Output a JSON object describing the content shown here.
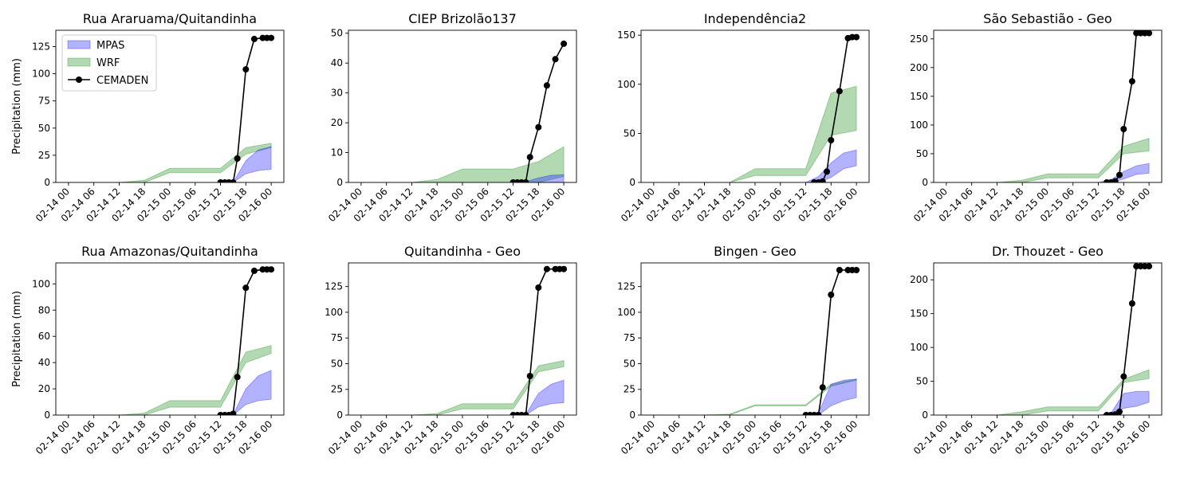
{
  "colors": {
    "mpas": "#0000ff",
    "wrf": "#008000",
    "cemaden": "#000000"
  },
  "legend": {
    "location": "upper-left",
    "panel": 0,
    "entries": [
      "MPAS",
      "WRF",
      "CEMADEN"
    ]
  },
  "y_axis_label": "Precipitation (mm)",
  "x_tick_labels": [
    "02-14 00",
    "02-14 06",
    "02-14 12",
    "02-14 18",
    "02-15 00",
    "02-15 06",
    "02-15 12",
    "02-15 18",
    "02-16 00"
  ],
  "chart_data": [
    {
      "type": "area",
      "title": "Rua Araruama/Quitandinha",
      "ylabel": "Precipitation (mm)",
      "xlim": [
        "2022-02-13T21:00",
        "2022-02-16T03:00"
      ],
      "ylim": [
        0,
        140
      ],
      "yticks": [
        0,
        25,
        50,
        75,
        100,
        125
      ],
      "series": [
        {
          "name": "WRF",
          "kind": "band",
          "x": [
            "2022-02-14T00:00",
            "2022-02-14T12:00",
            "2022-02-14T18:00",
            "2022-02-15T00:00",
            "2022-02-15T12:00",
            "2022-02-15T18:00",
            "2022-02-16T00:00"
          ],
          "lower": [
            0,
            0,
            0,
            9,
            9,
            26,
            32
          ],
          "upper": [
            0,
            0,
            2,
            13,
            13,
            32,
            36
          ]
        },
        {
          "name": "MPAS",
          "kind": "band",
          "x": [
            "2022-02-15T12:00",
            "2022-02-15T15:00",
            "2022-02-15T18:00",
            "2022-02-15T21:00",
            "2022-02-16T00:00"
          ],
          "lower": [
            0,
            0,
            8,
            11,
            12
          ],
          "upper": [
            0,
            0,
            20,
            30,
            33
          ]
        },
        {
          "name": "CEMADEN",
          "kind": "line",
          "x": [
            "2022-02-15T12:00",
            "2022-02-15T13:00",
            "2022-02-15T14:00",
            "2022-02-15T15:00",
            "2022-02-15T16:00",
            "2022-02-15T18:00",
            "2022-02-15T20:00",
            "2022-02-15T22:00",
            "2022-02-15T23:00",
            "2022-02-16T00:00"
          ],
          "y": [
            0,
            0,
            0,
            0,
            22,
            104,
            132,
            133,
            133,
            133
          ]
        }
      ]
    },
    {
      "type": "area",
      "title": "CIEP Brizolão137",
      "ylabel": "",
      "xlim": [
        "2022-02-13T21:00",
        "2022-02-16T03:00"
      ],
      "ylim": [
        0,
        51
      ],
      "yticks": [
        0,
        10,
        20,
        30,
        40,
        50
      ],
      "series": [
        {
          "name": "WRF",
          "kind": "band",
          "x": [
            "2022-02-14T00:00",
            "2022-02-14T12:00",
            "2022-02-14T18:00",
            "2022-02-15T00:00",
            "2022-02-15T12:00",
            "2022-02-15T18:00",
            "2022-02-16T00:00"
          ],
          "lower": [
            0,
            0,
            0,
            0,
            0,
            0,
            2
          ],
          "upper": [
            0,
            0,
            1,
            4.5,
            4.5,
            7,
            12
          ]
        },
        {
          "name": "MPAS",
          "kind": "band",
          "x": [
            "2022-02-15T12:00",
            "2022-02-15T15:00",
            "2022-02-15T18:00",
            "2022-02-15T21:00",
            "2022-02-16T00:00"
          ],
          "lower": [
            0,
            0,
            0,
            0,
            0
          ],
          "upper": [
            0,
            0.3,
            1.5,
            2.4,
            2.6
          ]
        },
        {
          "name": "CEMADEN",
          "kind": "line",
          "x": [
            "2022-02-15T12:00",
            "2022-02-15T13:00",
            "2022-02-15T14:00",
            "2022-02-15T15:00",
            "2022-02-15T16:00",
            "2022-02-15T18:00",
            "2022-02-15T20:00",
            "2022-02-15T22:00",
            "2022-02-16T00:00"
          ],
          "y": [
            0,
            0,
            0,
            0,
            8.5,
            18.5,
            32.5,
            41.3,
            46.5
          ]
        }
      ]
    },
    {
      "type": "area",
      "title": "Independência2",
      "ylabel": "",
      "xlim": [
        "2022-02-13T21:00",
        "2022-02-16T03:00"
      ],
      "ylim": [
        0,
        155
      ],
      "yticks": [
        0,
        50,
        100,
        150
      ],
      "series": [
        {
          "name": "WRF",
          "kind": "band",
          "x": [
            "2022-02-14T00:00",
            "2022-02-14T18:00",
            "2022-02-15T00:00",
            "2022-02-15T12:00",
            "2022-02-15T18:00",
            "2022-02-16T00:00"
          ],
          "lower": [
            0,
            0,
            7,
            7,
            48,
            53
          ],
          "upper": [
            0,
            0,
            14,
            14,
            91,
            98
          ]
        },
        {
          "name": "MPAS",
          "kind": "band",
          "x": [
            "2022-02-15T12:00",
            "2022-02-15T15:00",
            "2022-02-15T18:00",
            "2022-02-15T21:00",
            "2022-02-16T00:00"
          ],
          "lower": [
            0,
            0,
            5,
            14,
            17
          ],
          "upper": [
            0,
            6,
            20,
            30,
            33
          ]
        },
        {
          "name": "CEMADEN",
          "kind": "line",
          "x": [
            "2022-02-15T14:00",
            "2022-02-15T15:00",
            "2022-02-15T16:00",
            "2022-02-15T17:00",
            "2022-02-15T18:00",
            "2022-02-15T20:00",
            "2022-02-15T22:00",
            "2022-02-15T23:00",
            "2022-02-16T00:00"
          ],
          "y": [
            0,
            0,
            1,
            11,
            43,
            93,
            147,
            148,
            148
          ]
        }
      ]
    },
    {
      "type": "area",
      "title": "São Sebastião - Geo",
      "ylabel": "",
      "xlim": [
        "2022-02-13T21:00",
        "2022-02-16T03:00"
      ],
      "ylim": [
        0,
        265
      ],
      "yticks": [
        0,
        50,
        100,
        150,
        200,
        250
      ],
      "series": [
        {
          "name": "WRF",
          "kind": "band",
          "x": [
            "2022-02-14T00:00",
            "2022-02-14T12:00",
            "2022-02-14T18:00",
            "2022-02-15T00:00",
            "2022-02-15T12:00",
            "2022-02-15T18:00",
            "2022-02-16T00:00"
          ],
          "lower": [
            0,
            0,
            0,
            8,
            8,
            50,
            55
          ],
          "upper": [
            0,
            0,
            4,
            15,
            15,
            63,
            77
          ]
        },
        {
          "name": "MPAS",
          "kind": "band",
          "x": [
            "2022-02-15T12:00",
            "2022-02-15T15:00",
            "2022-02-15T18:00",
            "2022-02-15T21:00",
            "2022-02-16T00:00"
          ],
          "lower": [
            0,
            0,
            6,
            14,
            16
          ],
          "upper": [
            0,
            5,
            19,
            29,
            33
          ]
        },
        {
          "name": "CEMADEN",
          "kind": "line",
          "x": [
            "2022-02-15T14:00",
            "2022-02-15T15:00",
            "2022-02-15T16:00",
            "2022-02-15T17:00",
            "2022-02-15T18:00",
            "2022-02-15T20:00",
            "2022-02-15T21:00",
            "2022-02-15T22:00",
            "2022-02-15T23:00",
            "2022-02-16T00:00"
          ],
          "y": [
            0,
            0,
            2,
            13,
            93,
            176,
            260,
            260,
            260,
            260
          ]
        }
      ]
    },
    {
      "type": "area",
      "title": "Rua Amazonas/Quitandinha",
      "ylabel": "Precipitation (mm)",
      "xlim": [
        "2022-02-13T21:00",
        "2022-02-16T03:00"
      ],
      "ylim": [
        0,
        116
      ],
      "yticks": [
        0,
        20,
        40,
        60,
        80,
        100
      ],
      "series": [
        {
          "name": "WRF",
          "kind": "band",
          "x": [
            "2022-02-14T00:00",
            "2022-02-14T12:00",
            "2022-02-14T18:00",
            "2022-02-15T00:00",
            "2022-02-15T12:00",
            "2022-02-15T18:00",
            "2022-02-16T00:00"
          ],
          "lower": [
            0,
            0,
            0,
            6,
            6,
            40,
            47
          ],
          "upper": [
            0,
            0,
            1.5,
            11,
            11,
            48,
            53
          ]
        },
        {
          "name": "MPAS",
          "kind": "band",
          "x": [
            "2022-02-15T12:00",
            "2022-02-15T15:00",
            "2022-02-15T18:00",
            "2022-02-15T21:00",
            "2022-02-16T00:00"
          ],
          "lower": [
            0,
            0,
            8,
            11,
            12
          ],
          "upper": [
            0,
            0.5,
            20,
            30,
            34
          ]
        },
        {
          "name": "CEMADEN",
          "kind": "line",
          "x": [
            "2022-02-15T12:00",
            "2022-02-15T13:00",
            "2022-02-15T14:00",
            "2022-02-15T15:00",
            "2022-02-15T16:00",
            "2022-02-15T18:00",
            "2022-02-15T20:00",
            "2022-02-15T22:00",
            "2022-02-15T23:00",
            "2022-02-16T00:00"
          ],
          "y": [
            0,
            0,
            0,
            1,
            29,
            97,
            110,
            111,
            111,
            111
          ]
        }
      ]
    },
    {
      "type": "area",
      "title": "Quitandinha - Geo",
      "ylabel": "",
      "xlim": [
        "2022-02-13T21:00",
        "2022-02-16T03:00"
      ],
      "ylim": [
        0,
        148
      ],
      "yticks": [
        0,
        25,
        50,
        75,
        100,
        125
      ],
      "series": [
        {
          "name": "WRF",
          "kind": "band",
          "x": [
            "2022-02-14T00:00",
            "2022-02-14T12:00",
            "2022-02-14T18:00",
            "2022-02-15T00:00",
            "2022-02-15T12:00",
            "2022-02-15T18:00",
            "2022-02-16T00:00"
          ],
          "lower": [
            0,
            0,
            0,
            6,
            6,
            42,
            47
          ],
          "upper": [
            0,
            0,
            1.5,
            11,
            11,
            48,
            53
          ]
        },
        {
          "name": "MPAS",
          "kind": "band",
          "x": [
            "2022-02-15T12:00",
            "2022-02-15T15:00",
            "2022-02-15T18:00",
            "2022-02-15T21:00",
            "2022-02-16T00:00"
          ],
          "lower": [
            0,
            0,
            8,
            11,
            12
          ],
          "upper": [
            0,
            0.5,
            21,
            30,
            34
          ]
        },
        {
          "name": "CEMADEN",
          "kind": "line",
          "x": [
            "2022-02-15T12:00",
            "2022-02-15T13:00",
            "2022-02-15T14:00",
            "2022-02-15T15:00",
            "2022-02-15T16:00",
            "2022-02-15T18:00",
            "2022-02-15T20:00",
            "2022-02-15T22:00",
            "2022-02-15T23:00",
            "2022-02-16T00:00"
          ],
          "y": [
            0,
            0,
            0,
            0,
            38,
            124,
            142,
            142,
            142,
            142
          ]
        }
      ]
    },
    {
      "type": "area",
      "title": "Bingen - Geo",
      "ylabel": "",
      "xlim": [
        "2022-02-13T21:00",
        "2022-02-16T03:00"
      ],
      "ylim": [
        0,
        148
      ],
      "yticks": [
        0,
        25,
        50,
        75,
        100,
        125
      ],
      "series": [
        {
          "name": "WRF",
          "kind": "band",
          "x": [
            "2022-02-14T00:00",
            "2022-02-14T12:00",
            "2022-02-14T18:00",
            "2022-02-15T00:00",
            "2022-02-15T12:00",
            "2022-02-15T18:00",
            "2022-02-16T00:00"
          ],
          "lower": [
            0,
            0,
            0,
            9,
            9,
            28,
            34
          ],
          "upper": [
            0,
            0,
            1,
            10,
            10,
            30,
            35
          ]
        },
        {
          "name": "MPAS",
          "kind": "band",
          "x": [
            "2022-02-15T12:00",
            "2022-02-15T15:00",
            "2022-02-15T18:00",
            "2022-02-15T21:00",
            "2022-02-16T00:00"
          ],
          "lower": [
            0,
            0,
            9,
            14,
            17
          ],
          "upper": [
            0,
            2,
            30,
            34,
            35
          ]
        },
        {
          "name": "CEMADEN",
          "kind": "line",
          "x": [
            "2022-02-15T12:00",
            "2022-02-15T13:00",
            "2022-02-15T14:00",
            "2022-02-15T15:00",
            "2022-02-15T16:00",
            "2022-02-15T18:00",
            "2022-02-15T20:00",
            "2022-02-15T22:00",
            "2022-02-15T23:00",
            "2022-02-16T00:00"
          ],
          "y": [
            0,
            0,
            0,
            0,
            27,
            117,
            141,
            141,
            141,
            141
          ]
        }
      ]
    },
    {
      "type": "area",
      "title": "Dr. Thouzet - Geo",
      "ylabel": "",
      "xlim": [
        "2022-02-13T21:00",
        "2022-02-16T03:00"
      ],
      "ylim": [
        0,
        225
      ],
      "yticks": [
        0,
        50,
        100,
        150,
        200
      ],
      "series": [
        {
          "name": "WRF",
          "kind": "band",
          "x": [
            "2022-02-14T00:00",
            "2022-02-14T12:00",
            "2022-02-14T18:00",
            "2022-02-15T00:00",
            "2022-02-15T12:00",
            "2022-02-15T18:00",
            "2022-02-16T00:00"
          ],
          "lower": [
            0,
            0,
            0,
            6,
            6,
            48,
            54
          ],
          "upper": [
            0,
            0,
            5,
            12,
            12,
            53,
            67
          ]
        },
        {
          "name": "MPAS",
          "kind": "band",
          "x": [
            "2022-02-15T12:00",
            "2022-02-15T15:00",
            "2022-02-15T18:00",
            "2022-02-15T21:00",
            "2022-02-16T00:00"
          ],
          "lower": [
            0,
            0,
            10,
            13,
            19
          ],
          "upper": [
            0,
            3,
            32,
            35,
            35
          ]
        },
        {
          "name": "CEMADEN",
          "kind": "line",
          "x": [
            "2022-02-15T14:00",
            "2022-02-15T15:00",
            "2022-02-15T16:00",
            "2022-02-15T17:00",
            "2022-02-15T18:00",
            "2022-02-15T20:00",
            "2022-02-15T21:00",
            "2022-02-15T22:00",
            "2022-02-15T23:00",
            "2022-02-16T00:00"
          ],
          "y": [
            0,
            0,
            1,
            5,
            57,
            165,
            220,
            220,
            220,
            220
          ]
        }
      ]
    }
  ]
}
